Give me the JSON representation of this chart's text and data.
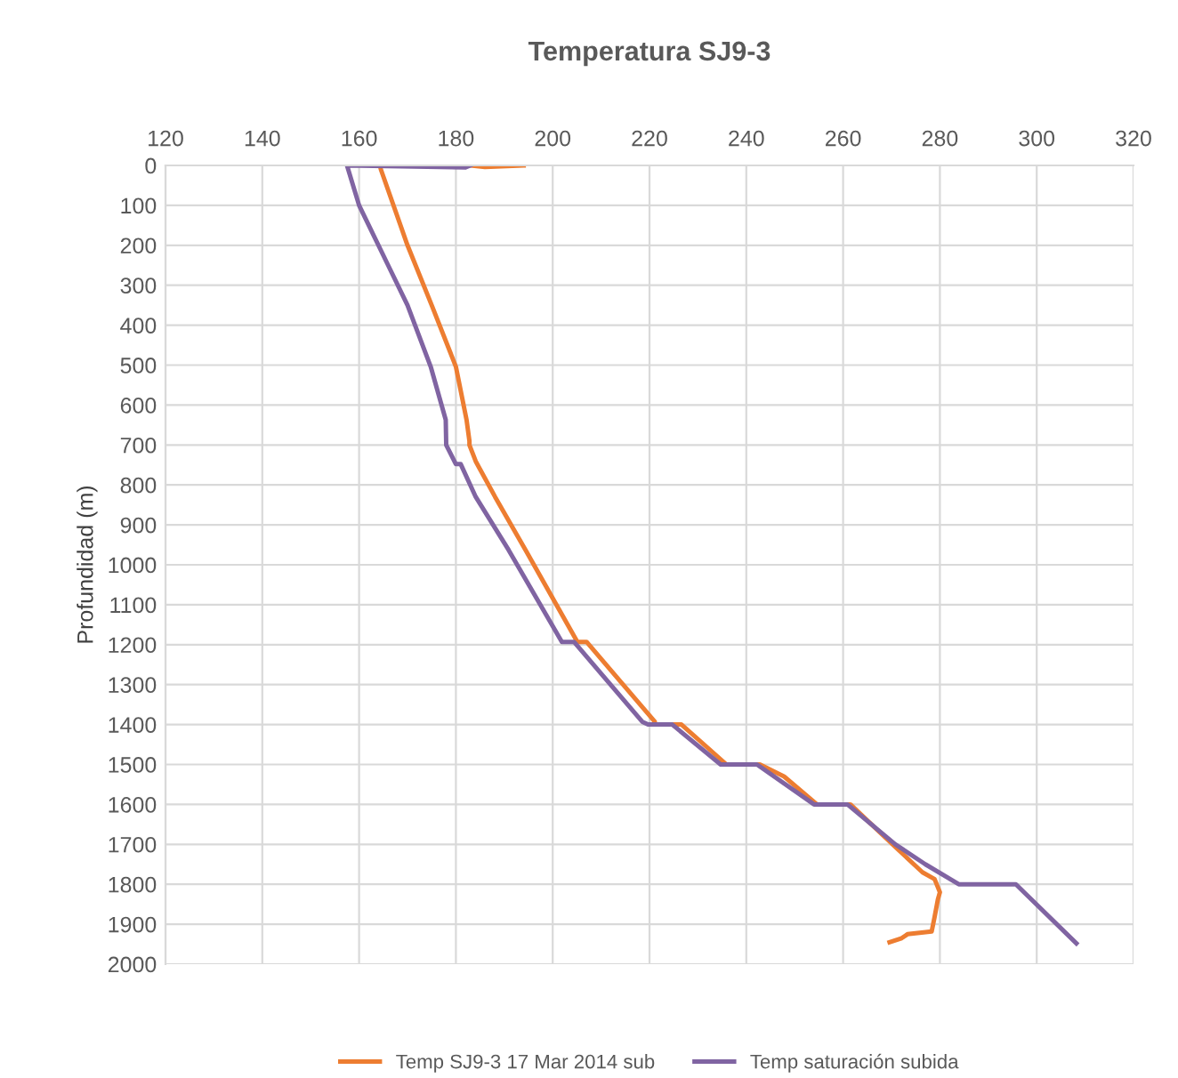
{
  "chart_data": {
    "type": "line",
    "title": "Temperatura SJ9-3",
    "ylabel": "Profundidad (m)",
    "xlim": [
      120,
      320
    ],
    "xticks": [
      120,
      140,
      160,
      180,
      200,
      220,
      240,
      260,
      280,
      300,
      320
    ],
    "ylim": [
      2000,
      0
    ],
    "yticks": [
      0,
      100,
      200,
      300,
      400,
      500,
      600,
      700,
      800,
      900,
      1000,
      1100,
      1200,
      1300,
      1400,
      1500,
      1600,
      1700,
      1800,
      1900,
      2000
    ],
    "grid": true,
    "legend": "bottom",
    "marker": "none",
    "line_style": "solid",
    "series": [
      {
        "name": "Temp SJ9-3 17 Mar 2014 sub",
        "color": "#ed7d31",
        "x": [
          194,
          186,
          183,
          164.3,
          164.5,
          170,
          175,
          180,
          182.2,
          182.8,
          182.8,
          184.1,
          188.1,
          194.4,
          205.1,
          207,
          221.1,
          221,
          226.6,
          235.9,
          242.8,
          247.8,
          254.6,
          261.5,
          270.2,
          276.4,
          278.9,
          280,
          279.6,
          278.9,
          278.3,
          273.3,
          272.1,
          269.6
        ],
        "values": [
          0,
          4,
          0,
          0,
          10,
          200,
          350,
          504,
          637,
          690,
          700,
          741,
          830,
          963,
          1193,
          1193,
          1393,
          1400,
          1400,
          1500,
          1500,
          1530,
          1600,
          1600,
          1700,
          1770,
          1787,
          1820,
          1837,
          1882,
          1918,
          1925,
          1935,
          1945
        ]
      },
      {
        "name": "Temp saturación subida",
        "color": "#8064a2",
        "x": [
          183,
          182,
          157.5,
          160,
          166,
          170,
          174.8,
          177.9,
          178,
          180,
          181,
          184.1,
          190.9,
          201.9,
          204.4,
          218.5,
          219.7,
          224.7,
          234.7,
          242.2,
          254,
          260.9,
          270.8,
          277,
          283.9,
          295.7,
          308.2
        ],
        "values": [
          0,
          5,
          0,
          100,
          250,
          350,
          504,
          637,
          700,
          748,
          748,
          830,
          963,
          1193,
          1193,
          1393,
          1400,
          1400,
          1500,
          1500,
          1600,
          1600,
          1700,
          1750,
          1800,
          1800,
          1948
        ]
      }
    ]
  }
}
